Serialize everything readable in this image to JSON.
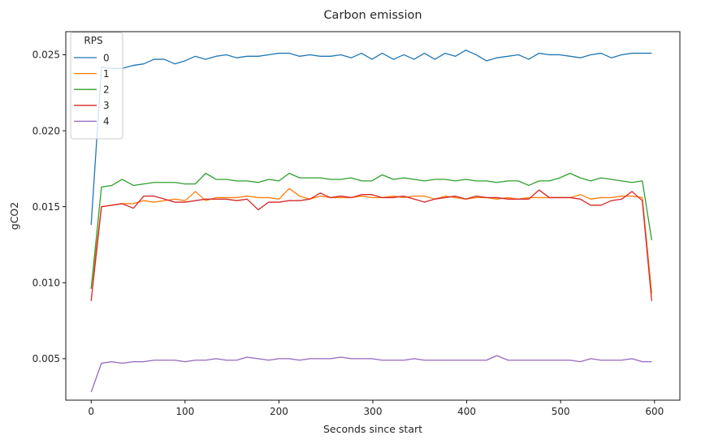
{
  "chart_data": {
    "type": "line",
    "title": "Carbon emission",
    "xlabel": "Seconds since start",
    "ylabel": "gCO2",
    "xlim": [
      -27,
      627
    ],
    "ylim": [
      0.00227,
      0.02652
    ],
    "x_ticks": [
      0,
      100,
      200,
      300,
      400,
      500,
      600
    ],
    "x_tick_labels": [
      "0",
      "100",
      "200",
      "300",
      "400",
      "500",
      "600"
    ],
    "y_ticks": [
      0.005,
      0.01,
      0.015,
      0.02,
      0.025
    ],
    "y_tick_labels": [
      "0.005",
      "0.010",
      "0.015",
      "0.020",
      "0.025"
    ],
    "grid": false,
    "legend": {
      "title": "RPS",
      "placement": "top-left"
    },
    "x": [
      0,
      11,
      22,
      33,
      45,
      56,
      67,
      78,
      89,
      100,
      111,
      122,
      133,
      144,
      155,
      166,
      178,
      189,
      200,
      211,
      222,
      233,
      244,
      255,
      266,
      277,
      288,
      299,
      310,
      322,
      333,
      344,
      355,
      366,
      377,
      388,
      399,
      410,
      421,
      432,
      444,
      455,
      466,
      477,
      488,
      499,
      510,
      521,
      532,
      543,
      554,
      565,
      576,
      587,
      597
    ],
    "series": [
      {
        "name": "0",
        "color": "#1f77b4",
        "values": [
          0.0138,
          0.0242,
          0.0241,
          0.0241,
          0.0243,
          0.0244,
          0.0247,
          0.0247,
          0.0244,
          0.0246,
          0.0249,
          0.0247,
          0.0249,
          0.025,
          0.0248,
          0.0249,
          0.0249,
          0.025,
          0.0251,
          0.0251,
          0.0249,
          0.025,
          0.0249,
          0.0249,
          0.025,
          0.0248,
          0.0251,
          0.0247,
          0.0251,
          0.0247,
          0.025,
          0.0247,
          0.0251,
          0.0247,
          0.0251,
          0.0249,
          0.0253,
          0.025,
          0.0246,
          0.0248,
          0.0249,
          0.025,
          0.0247,
          0.0251,
          0.025,
          0.025,
          0.0249,
          0.0248,
          0.025,
          0.0251,
          0.0248,
          0.025,
          0.0251,
          0.0251,
          0.0251
        ]
      },
      {
        "name": "1",
        "color": "#ff7f0e",
        "values": [
          0.0096,
          0.015,
          0.0151,
          0.0152,
          0.0152,
          0.0154,
          0.0153,
          0.0154,
          0.0155,
          0.0154,
          0.016,
          0.0154,
          0.0156,
          0.0156,
          0.0156,
          0.0157,
          0.0156,
          0.0156,
          0.0155,
          0.0162,
          0.0157,
          0.0155,
          0.0157,
          0.0156,
          0.0156,
          0.0156,
          0.0157,
          0.0156,
          0.0156,
          0.0157,
          0.0156,
          0.0157,
          0.0157,
          0.0155,
          0.0157,
          0.0156,
          0.0155,
          0.0156,
          0.0156,
          0.0155,
          0.0156,
          0.0155,
          0.0156,
          0.0156,
          0.0156,
          0.0156,
          0.0156,
          0.0158,
          0.0155,
          0.0156,
          0.0156,
          0.0157,
          0.0157,
          0.0156,
          0.0093
        ]
      },
      {
        "name": "2",
        "color": "#2ca02c",
        "values": [
          0.0096,
          0.0163,
          0.0164,
          0.0168,
          0.0164,
          0.0165,
          0.0166,
          0.0166,
          0.0166,
          0.0165,
          0.0165,
          0.0172,
          0.0168,
          0.0168,
          0.0167,
          0.0167,
          0.0166,
          0.0168,
          0.0167,
          0.0172,
          0.0169,
          0.0169,
          0.0169,
          0.0168,
          0.0168,
          0.0169,
          0.0167,
          0.0167,
          0.0171,
          0.0168,
          0.0169,
          0.0168,
          0.0167,
          0.0168,
          0.0168,
          0.0167,
          0.0168,
          0.0167,
          0.0167,
          0.0166,
          0.0167,
          0.0167,
          0.0164,
          0.0167,
          0.0167,
          0.0169,
          0.0172,
          0.0169,
          0.0167,
          0.0169,
          0.0168,
          0.0167,
          0.0166,
          0.0167,
          0.0128
        ]
      },
      {
        "name": "3",
        "color": "#d62728",
        "values": [
          0.0088,
          0.015,
          0.0151,
          0.0152,
          0.0149,
          0.0157,
          0.0157,
          0.0155,
          0.0153,
          0.0153,
          0.0154,
          0.0155,
          0.0155,
          0.0155,
          0.0154,
          0.0155,
          0.0148,
          0.0153,
          0.0153,
          0.0154,
          0.0154,
          0.0155,
          0.0159,
          0.0156,
          0.0157,
          0.0156,
          0.0158,
          0.0158,
          0.0156,
          0.0156,
          0.0157,
          0.0155,
          0.0153,
          0.0155,
          0.0156,
          0.0157,
          0.0155,
          0.0157,
          0.0156,
          0.0156,
          0.0155,
          0.0155,
          0.0155,
          0.0161,
          0.0156,
          0.0156,
          0.0156,
          0.0155,
          0.0151,
          0.0151,
          0.0154,
          0.0155,
          0.016,
          0.0154,
          0.0088
        ]
      },
      {
        "name": "4",
        "color": "#9467bd",
        "values": [
          0.0028,
          0.0047,
          0.0048,
          0.0047,
          0.0048,
          0.0048,
          0.0049,
          0.0049,
          0.0049,
          0.0048,
          0.0049,
          0.0049,
          0.005,
          0.0049,
          0.0049,
          0.0051,
          0.005,
          0.0049,
          0.005,
          0.005,
          0.0049,
          0.005,
          0.005,
          0.005,
          0.0051,
          0.005,
          0.005,
          0.005,
          0.0049,
          0.0049,
          0.0049,
          0.005,
          0.0049,
          0.0049,
          0.0049,
          0.0049,
          0.0049,
          0.0049,
          0.0049,
          0.0052,
          0.0049,
          0.0049,
          0.0049,
          0.0049,
          0.0049,
          0.0049,
          0.0049,
          0.0048,
          0.005,
          0.0049,
          0.0049,
          0.0049,
          0.005,
          0.0048,
          0.0048
        ]
      }
    ]
  }
}
